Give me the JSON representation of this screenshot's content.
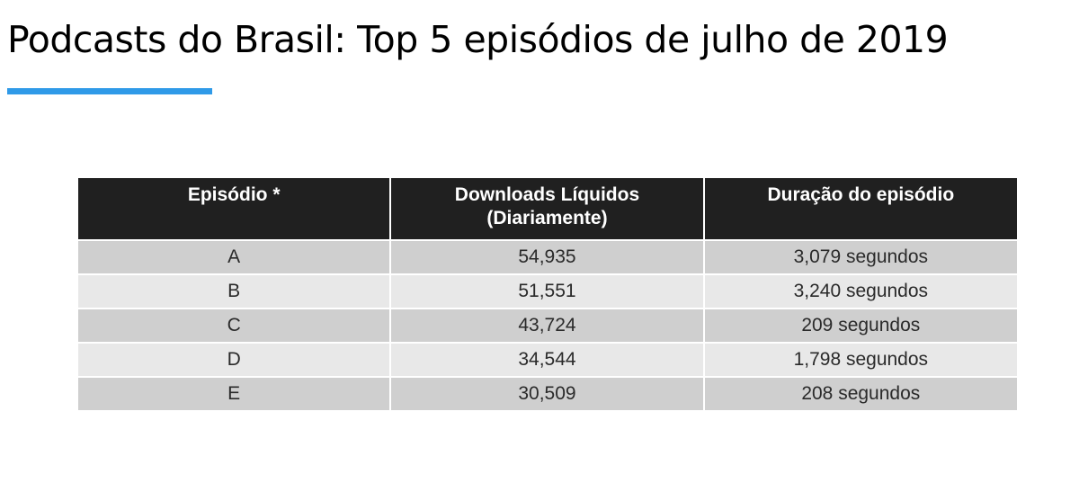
{
  "title": "Podcasts do Brasil: Top 5 episódios de julho de 2019",
  "colors": {
    "accent_underline": "#2f9ae8",
    "header_bg": "#202020",
    "row_dark": "#cfcfcf",
    "row_light": "#e8e8e8"
  },
  "table": {
    "headers": [
      {
        "line1": "Episódio *",
        "line2": ""
      },
      {
        "line1": "Downloads Líquidos",
        "line2": "(Diariamente)"
      },
      {
        "line1": "Duração do episódio",
        "line2": ""
      }
    ],
    "rows": [
      {
        "episode": "A",
        "downloads": "54,935",
        "duration": "3,079 segundos"
      },
      {
        "episode": "B",
        "downloads": "51,551",
        "duration": "3,240 segundos"
      },
      {
        "episode": "C",
        "downloads": "43,724",
        "duration": "209 segundos"
      },
      {
        "episode": "D",
        "downloads": "34,544",
        "duration": "1,798 segundos"
      },
      {
        "episode": "E",
        "downloads": "30,509",
        "duration": "208 segundos"
      }
    ]
  }
}
